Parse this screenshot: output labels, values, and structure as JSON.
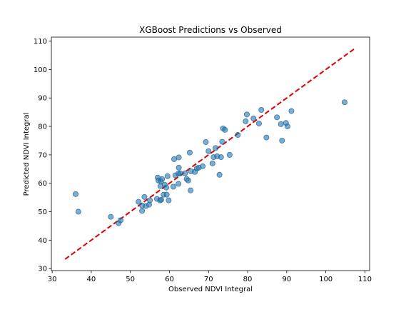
{
  "chart_data": {
    "type": "scatter",
    "title": "XGBoost Predictions vs Observed",
    "xlabel": "Observed NDVI Integral",
    "ylabel": "Predicted NDVI Integral",
    "xlim": [
      29.8,
      111.2
    ],
    "ylim": [
      29.3,
      111.4
    ],
    "x_ticks": [
      30,
      40,
      50,
      60,
      70,
      80,
      90,
      100,
      110
    ],
    "y_ticks": [
      30,
      40,
      50,
      60,
      70,
      80,
      90,
      100,
      110
    ],
    "grid": false,
    "legend": "none",
    "colors": {
      "points": "#1f77b4",
      "points_edge": "#1f5f8f",
      "reference_line": "#e00000"
    },
    "reference_line": {
      "style": "dashed",
      "x": [
        33.3,
        107.7
      ],
      "y": [
        33.3,
        107.7
      ]
    },
    "points": [
      {
        "x": 36.0,
        "y": 56.2
      },
      {
        "x": 36.7,
        "y": 50.0
      },
      {
        "x": 45.0,
        "y": 48.2
      },
      {
        "x": 47.0,
        "y": 46.0
      },
      {
        "x": 47.5,
        "y": 47.0
      },
      {
        "x": 52.1,
        "y": 53.5
      },
      {
        "x": 53.0,
        "y": 50.3
      },
      {
        "x": 53.0,
        "y": 52.2
      },
      {
        "x": 53.6,
        "y": 55.2
      },
      {
        "x": 54.0,
        "y": 52.0
      },
      {
        "x": 54.8,
        "y": 52.5
      },
      {
        "x": 55.0,
        "y": 54.0
      },
      {
        "x": 56.8,
        "y": 54.5
      },
      {
        "x": 57.0,
        "y": 62.0
      },
      {
        "x": 57.2,
        "y": 61.0
      },
      {
        "x": 57.6,
        "y": 54.0
      },
      {
        "x": 57.7,
        "y": 59.0
      },
      {
        "x": 57.8,
        "y": 60.7
      },
      {
        "x": 57.9,
        "y": 54.2
      },
      {
        "x": 58.1,
        "y": 61.5
      },
      {
        "x": 58.5,
        "y": 56.0
      },
      {
        "x": 58.8,
        "y": 59.5
      },
      {
        "x": 59.2,
        "y": 58.5
      },
      {
        "x": 59.3,
        "y": 56.0
      },
      {
        "x": 59.5,
        "y": 62.5
      },
      {
        "x": 59.8,
        "y": 54.0
      },
      {
        "x": 61.0,
        "y": 58.8
      },
      {
        "x": 61.2,
        "y": 68.5
      },
      {
        "x": 61.5,
        "y": 62.8
      },
      {
        "x": 62.3,
        "y": 59.8
      },
      {
        "x": 62.3,
        "y": 63.4
      },
      {
        "x": 62.4,
        "y": 65.5
      },
      {
        "x": 62.4,
        "y": 69.1
      },
      {
        "x": 62.8,
        "y": 63.5
      },
      {
        "x": 64.0,
        "y": 63.5
      },
      {
        "x": 64.4,
        "y": 61.5
      },
      {
        "x": 64.8,
        "y": 61.0
      },
      {
        "x": 65.2,
        "y": 70.8
      },
      {
        "x": 65.4,
        "y": 57.5
      },
      {
        "x": 65.5,
        "y": 64.2
      },
      {
        "x": 66.5,
        "y": 64.0
      },
      {
        "x": 67.0,
        "y": 65.2
      },
      {
        "x": 67.5,
        "y": 65.5
      },
      {
        "x": 68.5,
        "y": 66.0
      },
      {
        "x": 69.3,
        "y": 74.5
      },
      {
        "x": 70.0,
        "y": 71.3
      },
      {
        "x": 71.0,
        "y": 67.0
      },
      {
        "x": 71.3,
        "y": 69.2
      },
      {
        "x": 71.8,
        "y": 72.4
      },
      {
        "x": 72.2,
        "y": 69.5
      },
      {
        "x": 72.8,
        "y": 63.0
      },
      {
        "x": 73.2,
        "y": 69.2
      },
      {
        "x": 73.5,
        "y": 74.6
      },
      {
        "x": 73.7,
        "y": 79.3
      },
      {
        "x": 74.2,
        "y": 78.8
      },
      {
        "x": 75.4,
        "y": 70.0
      },
      {
        "x": 77.5,
        "y": 77.0
      },
      {
        "x": 79.5,
        "y": 81.8
      },
      {
        "x": 79.8,
        "y": 84.2
      },
      {
        "x": 81.5,
        "y": 82.8
      },
      {
        "x": 82.9,
        "y": 81.0
      },
      {
        "x": 83.5,
        "y": 85.8
      },
      {
        "x": 84.8,
        "y": 76.1
      },
      {
        "x": 87.5,
        "y": 83.2
      },
      {
        "x": 88.5,
        "y": 80.8
      },
      {
        "x": 88.8,
        "y": 75.0
      },
      {
        "x": 89.8,
        "y": 81.2
      },
      {
        "x": 90.2,
        "y": 80.0
      },
      {
        "x": 91.2,
        "y": 85.4
      },
      {
        "x": 104.8,
        "y": 88.5
      }
    ]
  }
}
